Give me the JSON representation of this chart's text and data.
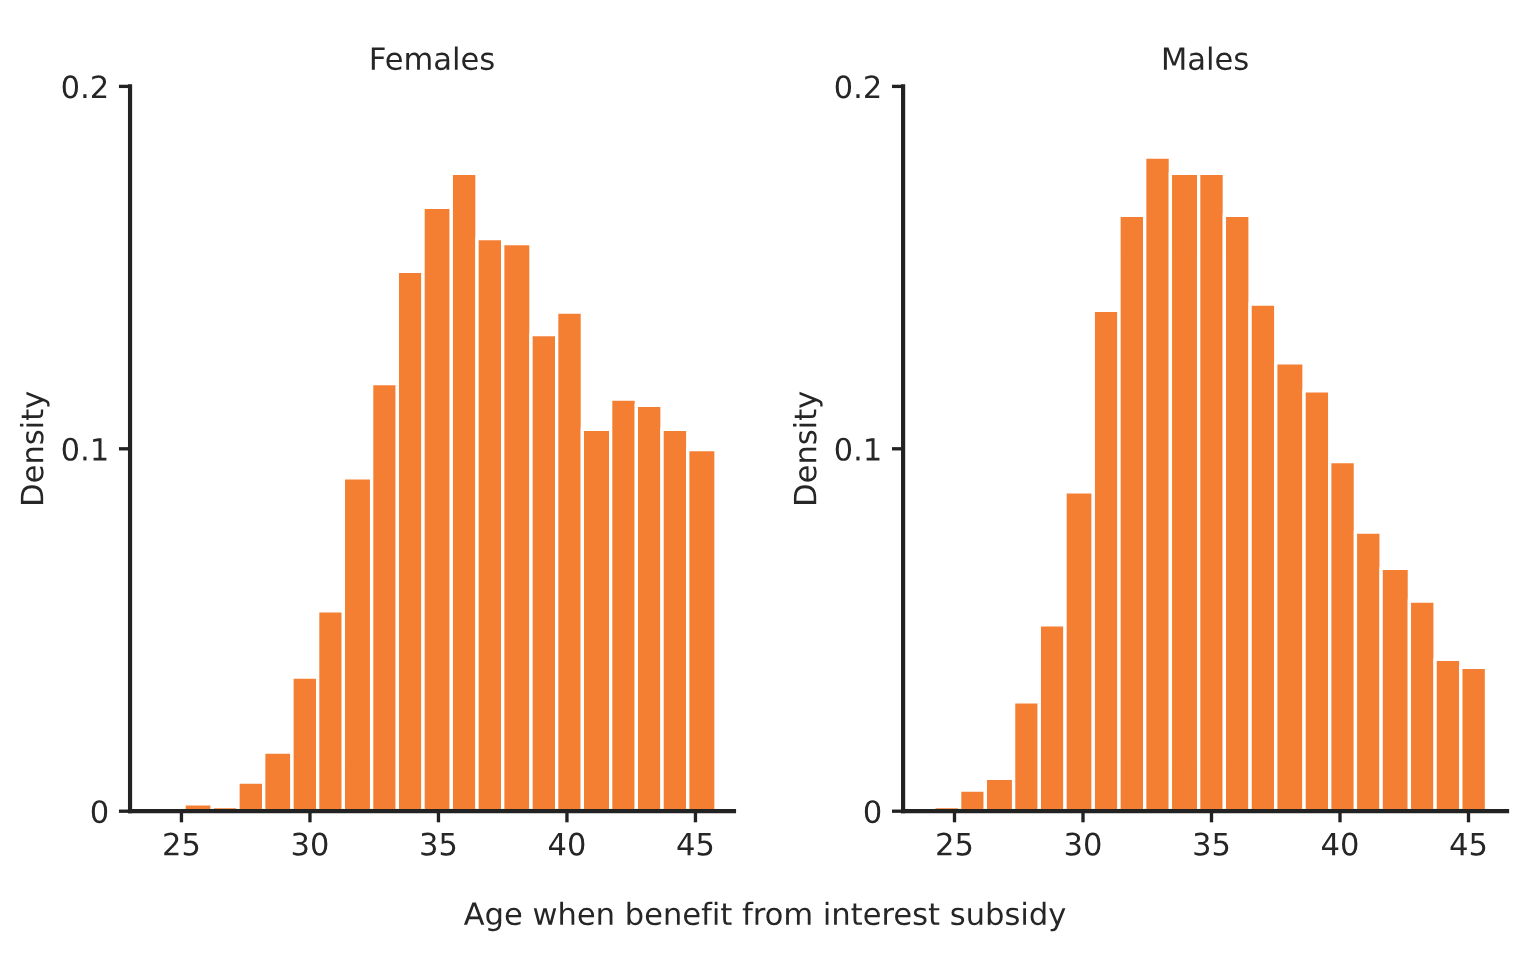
{
  "chart_data": [
    {
      "type": "histogram",
      "title": "Females",
      "ylabel": "Density",
      "xlabel": "Age when benefit from interest subsidy",
      "color": "#f47f32",
      "bins": [
        25.1,
        26.2,
        27.2,
        28.2,
        29.3,
        30.3,
        31.3,
        32.4,
        33.4,
        34.4,
        35.5,
        36.5,
        37.5,
        38.6,
        39.6,
        40.6,
        41.7,
        42.7,
        43.7,
        44.7,
        45.8
      ],
      "values": [
        0.002,
        0.0013,
        0.008,
        0.0163,
        0.037,
        0.0553,
        0.092,
        0.118,
        0.149,
        0.1666,
        0.176,
        0.158,
        0.1566,
        0.1315,
        0.1377,
        0.1054,
        0.1137,
        0.112,
        0.1054,
        0.0998
      ],
      "xlim": [
        23,
        46.5
      ],
      "ylim": [
        0,
        0.2
      ],
      "xticks": [
        25,
        30,
        35,
        40,
        45
      ],
      "yticks": [
        0,
        0.1,
        0.2
      ],
      "grid": false,
      "legend": false
    },
    {
      "type": "histogram",
      "title": "Males",
      "ylabel": "Density",
      "color": "#f47f32",
      "bins": [
        24.2,
        25.2,
        26.2,
        27.3,
        28.3,
        29.3,
        30.4,
        31.4,
        32.4,
        33.4,
        34.5,
        35.5,
        36.5,
        37.5,
        38.6,
        39.6,
        40.6,
        41.6,
        42.7,
        43.7,
        44.7,
        45.7
      ],
      "values": [
        0.0013,
        0.0058,
        0.0091,
        0.0302,
        0.0514,
        0.0881,
        0.1382,
        0.1644,
        0.1805,
        0.176,
        0.176,
        0.1644,
        0.1399,
        0.1237,
        0.116,
        0.0965,
        0.077,
        0.067,
        0.058,
        0.0419,
        0.0397
      ],
      "xlim": [
        23,
        46.5
      ],
      "ylim": [
        0,
        0.2
      ],
      "xticks": [
        25,
        30,
        35,
        40,
        45
      ],
      "yticks": [
        0,
        0.1,
        0.2
      ],
      "grid": false,
      "legend": false
    }
  ]
}
